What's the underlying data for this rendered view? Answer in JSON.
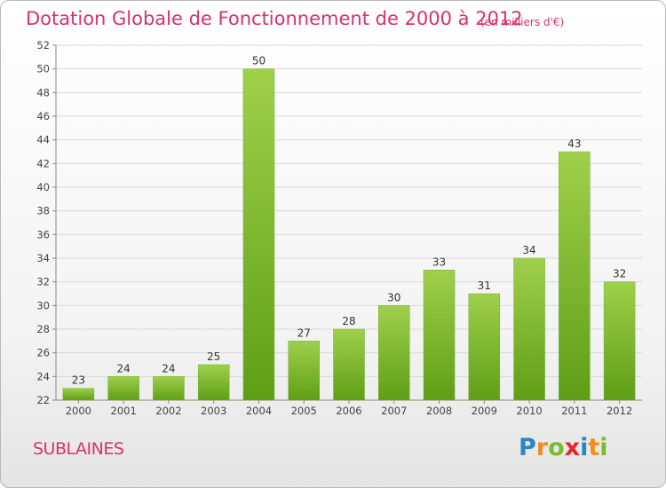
{
  "title": "Dotation Globale de Fonctionnement de 2000 à 2012",
  "subtitle": "(en milliers d'€)",
  "commune": "SUBLAINES",
  "brand": {
    "letters": [
      "P",
      "r",
      "o",
      "x",
      "i",
      "t",
      "i"
    ],
    "colors": [
      "#2b86c8",
      "#f28c1b",
      "#7dbb2e",
      "#e8262a",
      "#2b86c8",
      "#f28c1b",
      "#7dbb2e"
    ]
  },
  "colors": {
    "bar_top": "#9fd04c",
    "bar_bottom": "#5f9e16",
    "title": "#d6336e",
    "grid": "#d8d8d8"
  },
  "chart_data": {
    "type": "bar",
    "title": "Dotation Globale de Fonctionnement de 2000 à 2012",
    "subtitle": "(en milliers d'€)",
    "categories": [
      "2000",
      "2001",
      "2002",
      "2003",
      "2004",
      "2005",
      "2006",
      "2007",
      "2008",
      "2009",
      "2010",
      "2011",
      "2012"
    ],
    "values": [
      23,
      24,
      24,
      25,
      50,
      27,
      28,
      30,
      33,
      31,
      34,
      43,
      32
    ],
    "xlabel": "",
    "ylabel": "",
    "ylim": [
      22,
      52
    ],
    "yticks": [
      22,
      24,
      26,
      28,
      30,
      32,
      34,
      36,
      38,
      40,
      42,
      44,
      46,
      48,
      50,
      52
    ],
    "grid": true,
    "legend": "none"
  }
}
